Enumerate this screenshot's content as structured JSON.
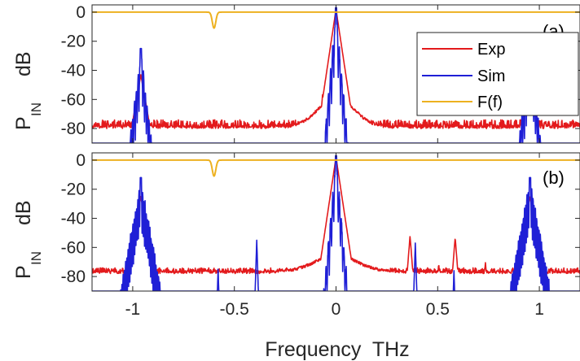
{
  "chart_data": [
    {
      "type": "line",
      "panel_label": "(a)",
      "ylabel_main": "P",
      "ylabel_sub": "IN",
      "ylabel_unit": "dB",
      "xlim": [
        -1.2,
        1.2
      ],
      "ylim": [
        -90,
        5
      ],
      "yticks": [
        0,
        -20,
        -40,
        -60,
        -80
      ],
      "legend": {
        "position": "top-right",
        "entries": [
          "Exp",
          "Sim",
          "F(f)"
        ]
      },
      "series": [
        {
          "name": "Exp",
          "color": "#e31a1c",
          "noise_floor": -79,
          "noise_amp": 5,
          "noise_seed": 11,
          "shoulder": {
            "center": 0,
            "level": -59,
            "width": 0.09
          },
          "peaks": [
            {
              "x": -0.96,
              "y": -43,
              "width": 0.014
            },
            {
              "x": 0.0,
              "y": 2,
              "width": 0.012
            },
            {
              "x": 0.954,
              "y": -45,
              "width": 0.014
            }
          ],
          "spikes": [
            {
              "x": -0.066,
              "y": -56
            },
            {
              "x": -0.04,
              "y": -54
            },
            {
              "x": 0.04,
              "y": -55
            }
          ]
        },
        {
          "name": "Sim",
          "color": "#1f1fd6",
          "floor": -95,
          "noise_seed": 5,
          "peaks": [
            {
              "x": -0.96,
              "y": -25,
              "width": 0.008,
              "comb": 0.018
            },
            {
              "x": 0.0,
              "y": 3,
              "width": 0.006,
              "comb": 0.022
            },
            {
              "x": 0.954,
              "y": -25,
              "width": 0.008,
              "comb": 0.018
            }
          ],
          "spikes": []
        },
        {
          "name": "F(f)",
          "color": "#edb120",
          "level": 0,
          "dip": {
            "x": -0.6,
            "y": -11,
            "width": 0.012
          }
        }
      ]
    },
    {
      "type": "line",
      "panel_label": "(b)",
      "ylabel_main": "P",
      "ylabel_sub": "IN",
      "ylabel_unit": "dB",
      "xlabel": "Frequency  THz",
      "xlim": [
        -1.2,
        1.2
      ],
      "ylim": [
        -90,
        5
      ],
      "xticks": [
        -1,
        -0.5,
        0,
        0.5,
        1
      ],
      "xtick_labels": [
        "-1",
        "-0.5",
        "0",
        "0.5",
        "1"
      ],
      "yticks": [
        0,
        -20,
        -40,
        -60,
        -80
      ],
      "series": [
        {
          "name": "Exp",
          "color": "#e31a1c",
          "noise_floor": -77,
          "noise_amp": 3,
          "noise_seed": 23,
          "shoulder": {
            "center": 0,
            "level": -66,
            "width": 0.11
          },
          "peaks": [
            {
              "x": -0.96,
              "y": -25,
              "width": 0.014
            },
            {
              "x": 0.0,
              "y": 2,
              "width": 0.012
            },
            {
              "x": 0.954,
              "y": -25,
              "width": 0.014
            }
          ],
          "spikes": [
            {
              "x": 0.364,
              "y": -52
            },
            {
              "x": 0.586,
              "y": -53
            },
            {
              "x": 0.505,
              "y": -71
            },
            {
              "x": 0.735,
              "y": -70
            }
          ]
        },
        {
          "name": "Sim",
          "color": "#1f1fd6",
          "floor": -95,
          "noise_seed": 9,
          "peaks": [
            {
              "x": -0.96,
              "y": -12,
              "width": 0.012,
              "comb": 0.012
            },
            {
              "x": 0.0,
              "y": 3,
              "width": 0.006,
              "comb": 0.022
            },
            {
              "x": 0.954,
              "y": -12,
              "width": 0.012,
              "comb": 0.012
            }
          ],
          "spikes": [
            {
              "x": -0.58,
              "y": -75
            },
            {
              "x": -0.39,
              "y": -55
            },
            {
              "x": 0.39,
              "y": -57
            },
            {
              "x": 0.58,
              "y": -76
            }
          ]
        },
        {
          "name": "F(f)",
          "color": "#edb120",
          "level": 0,
          "dip": {
            "x": -0.6,
            "y": -11,
            "width": 0.012
          }
        }
      ]
    }
  ]
}
